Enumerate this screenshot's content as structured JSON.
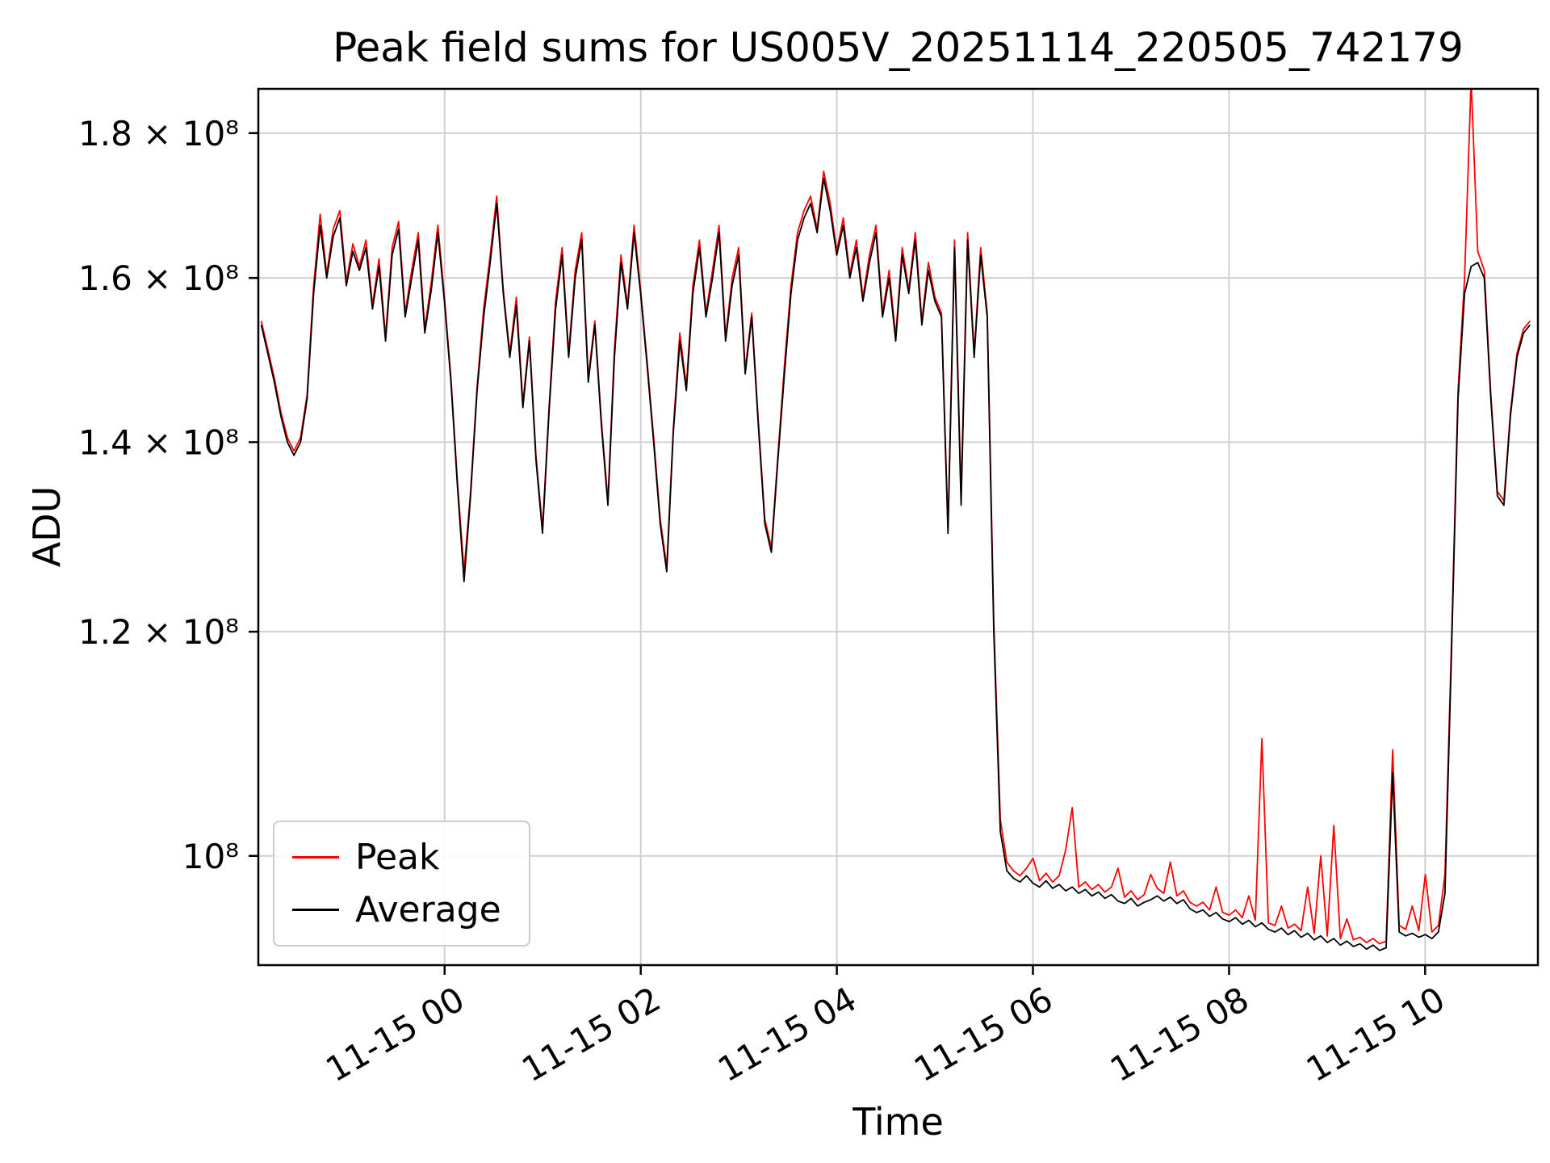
{
  "chart_data": {
    "type": "line",
    "title": "Peak field sums for US005V_20251114_220505_742179",
    "xlabel": "Time",
    "ylabel": "ADU",
    "yscale": "log",
    "grid": true,
    "grid_color": "#d0d0d0",
    "legend_position": "lower left",
    "ylim_1e8": [
      0.915,
      1.866
    ],
    "xlim_hours": [
      0.1,
      13.15
    ],
    "x_unit": "hours since 2025-11-14 22:00",
    "x_start_hours": 0.13,
    "x_step_hours": 0.0667,
    "x_ticks": [
      {
        "hours": 2,
        "label": "11-15 00"
      },
      {
        "hours": 4,
        "label": "11-15 02"
      },
      {
        "hours": 6,
        "label": "11-15 04"
      },
      {
        "hours": 8,
        "label": "11-15 06"
      },
      {
        "hours": 10,
        "label": "11-15 08"
      },
      {
        "hours": 12,
        "label": "11-15 10"
      }
    ],
    "y_ticks": [
      {
        "value": 1.0,
        "label": "10⁸"
      },
      {
        "value": 1.2,
        "label": "1.2 × 10⁸"
      },
      {
        "value": 1.4,
        "label": "1.4 × 10⁸"
      },
      {
        "value": 1.6,
        "label": "1.6 × 10⁸"
      },
      {
        "value": 1.8,
        "label": "1.8 × 10⁸"
      }
    ],
    "series": [
      {
        "name": "Peak",
        "color": "#ff0000",
        "values_1e8": [
          1.545,
          1.51,
          1.475,
          1.435,
          1.405,
          1.39,
          1.405,
          1.455,
          1.59,
          1.685,
          1.605,
          1.665,
          1.69,
          1.595,
          1.645,
          1.615,
          1.65,
          1.565,
          1.625,
          1.525,
          1.64,
          1.675,
          1.555,
          1.61,
          1.66,
          1.535,
          1.595,
          1.67,
          1.575,
          1.475,
          1.355,
          1.26,
          1.345,
          1.465,
          1.56,
          1.63,
          1.71,
          1.585,
          1.505,
          1.575,
          1.445,
          1.525,
          1.385,
          1.305,
          1.44,
          1.57,
          1.64,
          1.505,
          1.61,
          1.66,
          1.475,
          1.545,
          1.425,
          1.335,
          1.51,
          1.63,
          1.565,
          1.67,
          1.585,
          1.495,
          1.405,
          1.315,
          1.265,
          1.415,
          1.53,
          1.465,
          1.59,
          1.65,
          1.555,
          1.61,
          1.67,
          1.525,
          1.6,
          1.64,
          1.485,
          1.555,
          1.425,
          1.315,
          1.285,
          1.385,
          1.49,
          1.59,
          1.66,
          1.69,
          1.71,
          1.665,
          1.745,
          1.7,
          1.635,
          1.68,
          1.605,
          1.65,
          1.575,
          1.63,
          1.67,
          1.555,
          1.61,
          1.525,
          1.64,
          1.585,
          1.66,
          1.545,
          1.62,
          1.575,
          1.555,
          1.305,
          1.65,
          1.34,
          1.66,
          1.505,
          1.64,
          1.555,
          1.21,
          1.03,
          0.995,
          0.988,
          0.984,
          0.99,
          0.998,
          0.98,
          0.986,
          0.979,
          0.984,
          1.005,
          1.04,
          0.975,
          0.979,
          0.973,
          0.977,
          0.971,
          0.975,
          0.99,
          0.967,
          0.972,
          0.965,
          0.969,
          0.985,
          0.974,
          0.97,
          0.995,
          0.968,
          0.972,
          0.963,
          0.96,
          0.963,
          0.957,
          0.975,
          0.955,
          0.953,
          0.957,
          0.951,
          0.968,
          0.949,
          1.1,
          0.947,
          0.945,
          0.96,
          0.943,
          0.946,
          0.941,
          0.975,
          0.939,
          1.0,
          0.937,
          1.025,
          0.935,
          0.95,
          0.934,
          0.936,
          0.932,
          0.935,
          0.931,
          0.933,
          1.09,
          0.945,
          0.942,
          0.96,
          0.941,
          0.985,
          0.94,
          0.945,
          0.985,
          1.19,
          1.46,
          1.6,
          1.88,
          1.635,
          1.61,
          1.455,
          1.345,
          1.335,
          1.435,
          1.505,
          1.535,
          1.545
        ]
      },
      {
        "name": "Average",
        "color": "#000000",
        "values_1e8": [
          1.54,
          1.505,
          1.47,
          1.43,
          1.4,
          1.385,
          1.4,
          1.45,
          1.58,
          1.67,
          1.6,
          1.655,
          1.68,
          1.59,
          1.635,
          1.61,
          1.64,
          1.56,
          1.615,
          1.52,
          1.63,
          1.665,
          1.55,
          1.6,
          1.65,
          1.53,
          1.585,
          1.66,
          1.57,
          1.47,
          1.35,
          1.25,
          1.34,
          1.46,
          1.55,
          1.62,
          1.7,
          1.58,
          1.5,
          1.565,
          1.44,
          1.52,
          1.38,
          1.3,
          1.435,
          1.56,
          1.63,
          1.5,
          1.6,
          1.65,
          1.47,
          1.54,
          1.42,
          1.33,
          1.5,
          1.62,
          1.56,
          1.66,
          1.58,
          1.49,
          1.4,
          1.31,
          1.26,
          1.41,
          1.52,
          1.46,
          1.58,
          1.64,
          1.55,
          1.6,
          1.66,
          1.52,
          1.59,
          1.63,
          1.48,
          1.55,
          1.42,
          1.31,
          1.28,
          1.38,
          1.48,
          1.58,
          1.65,
          1.68,
          1.7,
          1.66,
          1.735,
          1.69,
          1.63,
          1.67,
          1.6,
          1.64,
          1.57,
          1.62,
          1.66,
          1.55,
          1.6,
          1.52,
          1.63,
          1.58,
          1.65,
          1.54,
          1.61,
          1.57,
          1.55,
          1.3,
          1.64,
          1.33,
          1.65,
          1.5,
          1.63,
          1.55,
          1.2,
          1.02,
          0.988,
          0.982,
          0.979,
          0.984,
          0.978,
          0.975,
          0.98,
          0.974,
          0.977,
          0.972,
          0.975,
          0.97,
          0.973,
          0.968,
          0.971,
          0.966,
          0.969,
          0.964,
          0.962,
          0.966,
          0.96,
          0.963,
          0.965,
          0.968,
          0.964,
          0.967,
          0.962,
          0.965,
          0.958,
          0.955,
          0.957,
          0.952,
          0.955,
          0.95,
          0.948,
          0.951,
          0.946,
          0.949,
          0.944,
          0.947,
          0.942,
          0.94,
          0.943,
          0.938,
          0.941,
          0.936,
          0.939,
          0.934,
          0.937,
          0.932,
          0.935,
          0.93,
          0.933,
          0.929,
          0.931,
          0.927,
          0.93,
          0.926,
          0.928,
          1.07,
          0.94,
          0.937,
          0.939,
          0.936,
          0.938,
          0.935,
          0.94,
          0.97,
          1.18,
          1.45,
          1.58,
          1.615,
          1.62,
          1.6,
          1.45,
          1.34,
          1.33,
          1.43,
          1.5,
          1.53,
          1.54
        ]
      }
    ]
  }
}
